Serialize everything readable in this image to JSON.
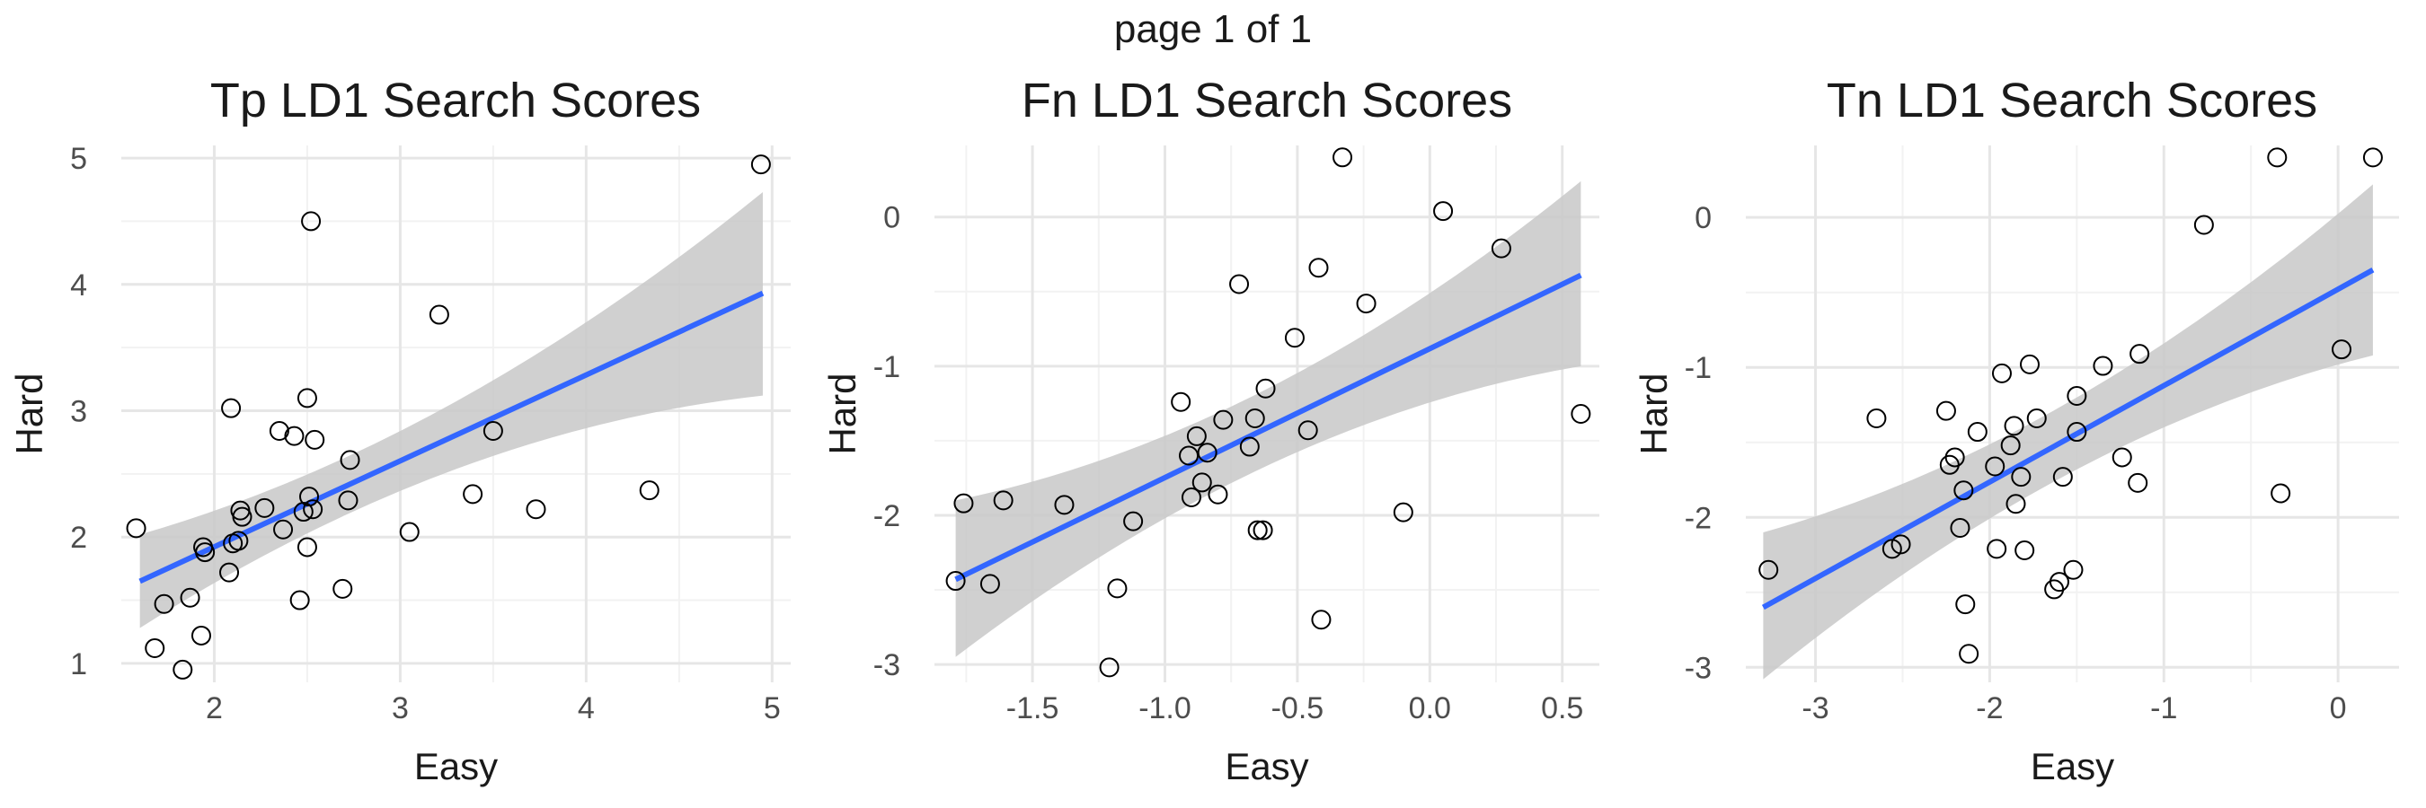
{
  "page": {
    "title": "page 1 of 1"
  },
  "chart_data": [
    {
      "type": "scatter",
      "title": "Tp LD1 Search Scores",
      "xlabel": "Easy",
      "ylabel": "Hard",
      "xlim": [
        1.5,
        5.1
      ],
      "ylim": [
        0.85,
        5.1
      ],
      "xticks": [
        2,
        3,
        4,
        5
      ],
      "yticks": [
        1,
        2,
        3,
        4,
        5
      ],
      "xtick_labels": [
        "2",
        "3",
        "4",
        "5"
      ],
      "ytick_labels": [
        "1",
        "2",
        "3",
        "4",
        "5"
      ],
      "grid": true,
      "fit": {
        "method": "linear",
        "x": [
          1.6,
          4.95
        ],
        "y": [
          1.65,
          3.93
        ],
        "band_lower": [
          1.28,
          3.12
        ],
        "band_upper": [
          2.02,
          4.73
        ]
      },
      "colors": {
        "points": "#000000",
        "fit_line": "#3366ff",
        "band": "#c8c8c8"
      },
      "points": [
        {
          "x": 1.58,
          "y": 2.07
        },
        {
          "x": 1.68,
          "y": 1.12
        },
        {
          "x": 1.73,
          "y": 1.47
        },
        {
          "x": 1.83,
          "y": 0.95
        },
        {
          "x": 1.87,
          "y": 1.52
        },
        {
          "x": 1.93,
          "y": 1.22
        },
        {
          "x": 1.94,
          "y": 1.92
        },
        {
          "x": 1.95,
          "y": 1.88
        },
        {
          "x": 2.08,
          "y": 1.72
        },
        {
          "x": 2.09,
          "y": 3.02
        },
        {
          "x": 2.1,
          "y": 1.95
        },
        {
          "x": 2.13,
          "y": 1.97
        },
        {
          "x": 2.14,
          "y": 2.21
        },
        {
          "x": 2.15,
          "y": 2.16
        },
        {
          "x": 2.27,
          "y": 2.23
        },
        {
          "x": 2.35,
          "y": 2.84
        },
        {
          "x": 2.37,
          "y": 2.06
        },
        {
          "x": 2.43,
          "y": 2.8
        },
        {
          "x": 2.46,
          "y": 1.5
        },
        {
          "x": 2.48,
          "y": 2.2
        },
        {
          "x": 2.5,
          "y": 1.92
        },
        {
          "x": 2.5,
          "y": 3.1
        },
        {
          "x": 2.51,
          "y": 2.32
        },
        {
          "x": 2.52,
          "y": 4.5
        },
        {
          "x": 2.53,
          "y": 2.22
        },
        {
          "x": 2.54,
          "y": 2.77
        },
        {
          "x": 2.69,
          "y": 1.59
        },
        {
          "x": 2.72,
          "y": 2.29
        },
        {
          "x": 2.73,
          "y": 2.61
        },
        {
          "x": 3.05,
          "y": 2.04
        },
        {
          "x": 3.21,
          "y": 3.76
        },
        {
          "x": 3.39,
          "y": 2.34
        },
        {
          "x": 3.5,
          "y": 2.84
        },
        {
          "x": 3.73,
          "y": 2.22
        },
        {
          "x": 4.34,
          "y": 2.37
        },
        {
          "x": 4.94,
          "y": 4.95
        }
      ]
    },
    {
      "type": "scatter",
      "title": "Fn LD1 Search Scores",
      "xlabel": "Easy",
      "ylabel": "Hard",
      "xlim": [
        -1.87,
        0.64
      ],
      "ylim": [
        -3.12,
        0.48
      ],
      "xticks": [
        -1.5,
        -1.0,
        -0.5,
        0.0,
        0.5
      ],
      "yticks": [
        -3,
        -2,
        -1,
        0
      ],
      "xtick_labels": [
        "-1.5",
        "-1.0",
        "-0.5",
        "0.0",
        "0.5"
      ],
      "ytick_labels": [
        "-3",
        "-2",
        "-1",
        "0"
      ],
      "grid": true,
      "fit": {
        "method": "linear",
        "x": [
          -1.79,
          0.57
        ],
        "y": [
          -2.43,
          -0.39
        ],
        "band_lower": [
          -2.95,
          -1.0
        ],
        "band_upper": [
          -1.9,
          0.24
        ]
      },
      "colors": {
        "points": "#000000",
        "fit_line": "#3366ff",
        "band": "#c8c8c8"
      },
      "points": [
        {
          "x": -1.79,
          "y": -2.44
        },
        {
          "x": -1.76,
          "y": -1.92
        },
        {
          "x": -1.66,
          "y": -2.46
        },
        {
          "x": -1.61,
          "y": -1.9
        },
        {
          "x": -1.38,
          "y": -1.93
        },
        {
          "x": -1.21,
          "y": -3.02
        },
        {
          "x": -1.18,
          "y": -2.49
        },
        {
          "x": -1.12,
          "y": -2.04
        },
        {
          "x": -0.94,
          "y": -1.24
        },
        {
          "x": -0.91,
          "y": -1.6
        },
        {
          "x": -0.9,
          "y": -1.88
        },
        {
          "x": -0.88,
          "y": -1.47
        },
        {
          "x": -0.86,
          "y": -1.78
        },
        {
          "x": -0.84,
          "y": -1.58
        },
        {
          "x": -0.8,
          "y": -1.86
        },
        {
          "x": -0.78,
          "y": -1.36
        },
        {
          "x": -0.72,
          "y": -0.45
        },
        {
          "x": -0.68,
          "y": -1.54
        },
        {
          "x": -0.66,
          "y": -1.35
        },
        {
          "x": -0.65,
          "y": -2.1
        },
        {
          "x": -0.63,
          "y": -2.1
        },
        {
          "x": -0.62,
          "y": -1.15
        },
        {
          "x": -0.51,
          "y": -0.81
        },
        {
          "x": -0.46,
          "y": -1.43
        },
        {
          "x": -0.42,
          "y": -0.34
        },
        {
          "x": -0.41,
          "y": -2.7
        },
        {
          "x": -0.33,
          "y": 0.4
        },
        {
          "x": -0.24,
          "y": -0.58
        },
        {
          "x": -0.1,
          "y": -1.98
        },
        {
          "x": 0.05,
          "y": 0.04
        },
        {
          "x": 0.27,
          "y": -0.21
        },
        {
          "x": 0.57,
          "y": -1.32
        }
      ]
    },
    {
      "type": "scatter",
      "title": "Tn LD1 Search Scores",
      "xlabel": "Easy",
      "ylabel": "Hard",
      "xlim": [
        -3.4,
        0.35
      ],
      "ylim": [
        -3.1,
        0.48
      ],
      "xticks": [
        -3,
        -2,
        -1,
        0
      ],
      "yticks": [
        -3,
        -2,
        -1,
        0
      ],
      "xtick_labels": [
        "-3",
        "-2",
        "-1",
        "0"
      ],
      "ytick_labels": [
        "-3",
        "-2",
        "-1",
        "0"
      ],
      "grid": true,
      "fit": {
        "method": "linear",
        "x": [
          -3.3,
          0.2
        ],
        "y": [
          -2.6,
          -0.35
        ],
        "band_lower": [
          -3.08,
          -0.92
        ],
        "band_upper": [
          -2.1,
          0.22
        ]
      },
      "colors": {
        "points": "#000000",
        "fit_line": "#3366ff",
        "band": "#c8c8c8"
      },
      "points": [
        {
          "x": -3.27,
          "y": -2.35
        },
        {
          "x": -2.65,
          "y": -1.34
        },
        {
          "x": -2.56,
          "y": -2.21
        },
        {
          "x": -2.51,
          "y": -2.18
        },
        {
          "x": -2.25,
          "y": -1.29
        },
        {
          "x": -2.23,
          "y": -1.65
        },
        {
          "x": -2.2,
          "y": -1.6
        },
        {
          "x": -2.17,
          "y": -2.07
        },
        {
          "x": -2.15,
          "y": -1.82
        },
        {
          "x": -2.14,
          "y": -2.58
        },
        {
          "x": -2.12,
          "y": -2.91
        },
        {
          "x": -2.07,
          "y": -1.43
        },
        {
          "x": -1.97,
          "y": -1.66
        },
        {
          "x": -1.96,
          "y": -2.21
        },
        {
          "x": -1.93,
          "y": -1.04
        },
        {
          "x": -1.88,
          "y": -1.52
        },
        {
          "x": -1.86,
          "y": -1.39
        },
        {
          "x": -1.85,
          "y": -1.91
        },
        {
          "x": -1.82,
          "y": -1.73
        },
        {
          "x": -1.8,
          "y": -2.22
        },
        {
          "x": -1.77,
          "y": -0.98
        },
        {
          "x": -1.73,
          "y": -1.34
        },
        {
          "x": -1.63,
          "y": -2.48
        },
        {
          "x": -1.6,
          "y": -2.43
        },
        {
          "x": -1.58,
          "y": -1.73
        },
        {
          "x": -1.52,
          "y": -2.35
        },
        {
          "x": -1.5,
          "y": -1.19
        },
        {
          "x": -1.5,
          "y": -1.43
        },
        {
          "x": -1.35,
          "y": -0.99
        },
        {
          "x": -1.24,
          "y": -1.6
        },
        {
          "x": -1.14,
          "y": -0.91
        },
        {
          "x": -1.15,
          "y": -1.77
        },
        {
          "x": -0.77,
          "y": -0.05
        },
        {
          "x": -0.35,
          "y": 0.4
        },
        {
          "x": -0.33,
          "y": -1.84
        },
        {
          "x": 0.02,
          "y": -0.88
        },
        {
          "x": 0.2,
          "y": 0.4
        }
      ]
    }
  ]
}
